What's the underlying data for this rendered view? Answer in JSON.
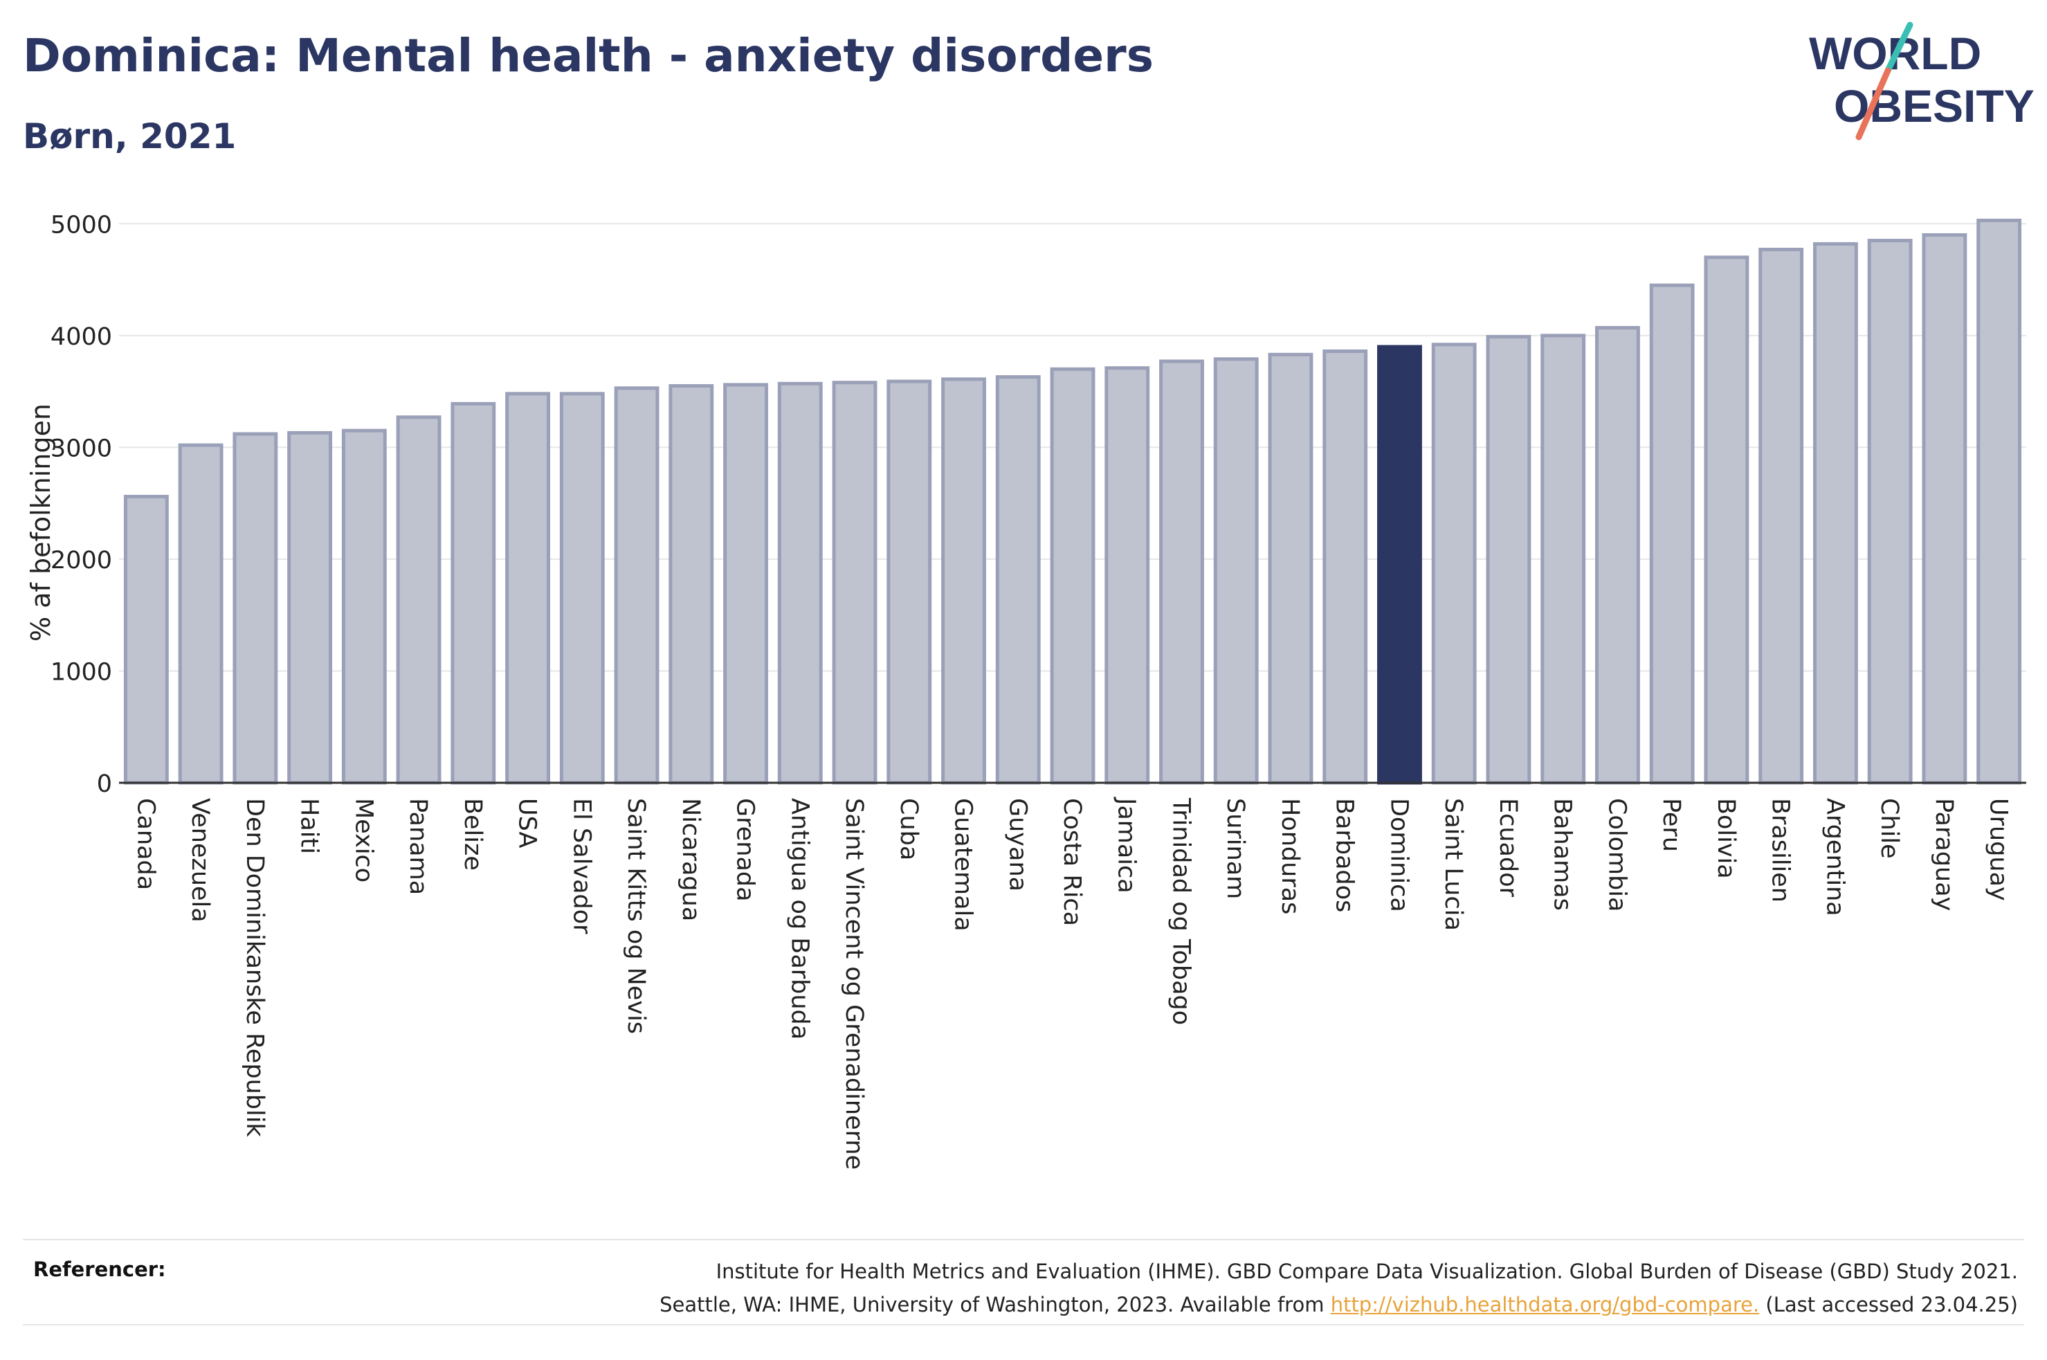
{
  "header": {
    "title": "Dominica: Mental health - anxiety disorders",
    "subtitle": "Børn, 2021"
  },
  "logo": {
    "line1": "WORLD",
    "line2": "OBESITY",
    "accent_colors": [
      "#3bbfb5",
      "#e8735a"
    ]
  },
  "colors": {
    "bar_default": "#bfc2cf",
    "bar_border": "#9aa0b8",
    "bar_highlight": "#2b3663",
    "title": "#2b3663",
    "link": "#e8a33a"
  },
  "chart_data": {
    "type": "bar",
    "title": "Dominica: Mental health - anxiety disorders",
    "subtitle": "Børn, 2021",
    "xlabel": "",
    "ylabel": "% af befolkningen",
    "ylim": [
      0,
      5200
    ],
    "yticks": [
      0,
      1000,
      2000,
      3000,
      4000,
      5000
    ],
    "grid": true,
    "highlight": "Dominica",
    "categories": [
      "Canada",
      "Venezuela",
      "Den Dominikanske Republik",
      "Haiti",
      "Mexico",
      "Panama",
      "Belize",
      "USA",
      "El Salvador",
      "Saint Kitts og Nevis",
      "Nicaragua",
      "Grenada",
      "Antigua og Barbuda",
      "Saint Vincent og Grenadinerne",
      "Cuba",
      "Guatemala",
      "Guyana",
      "Costa Rica",
      "Jamaica",
      "Trinidad og Tobago",
      "Surinam",
      "Honduras",
      "Barbados",
      "Dominica",
      "Saint Lucia",
      "Ecuador",
      "Bahamas",
      "Colombia",
      "Peru",
      "Bolivia",
      "Brasilien",
      "Argentina",
      "Chile",
      "Paraguay",
      "Uruguay"
    ],
    "values": [
      2560,
      3020,
      3120,
      3130,
      3150,
      3270,
      3390,
      3480,
      3480,
      3530,
      3550,
      3560,
      3570,
      3580,
      3590,
      3610,
      3630,
      3700,
      3710,
      3770,
      3790,
      3830,
      3860,
      3900,
      3920,
      3990,
      4000,
      4070,
      4450,
      4700,
      4770,
      4820,
      4850,
      4900,
      5030
    ]
  },
  "references": {
    "label": "Referencer:",
    "line1": "Institute for Health Metrics and Evaluation (IHME). GBD Compare Data Visualization. Global Burden of Disease (GBD) Study 2021.",
    "line2_prefix": "Seattle, WA: IHME, University of Washington, 2023. Available from ",
    "link": "http://vizhub.healthdata.org/gbd-compare.",
    "line2_suffix": " (Last accessed 23.04.25)"
  }
}
